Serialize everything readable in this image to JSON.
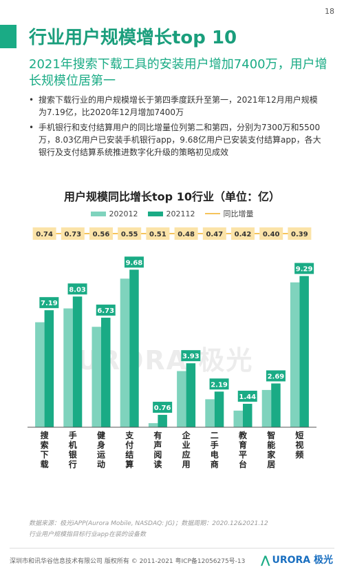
{
  "page": {
    "number": "18",
    "title": "行业用户规模增长top 10",
    "subtitle": "2021年搜索下载工具的安装用户增加7400万，用户增长规模位居第一",
    "bullet_marker": "•",
    "bullets": [
      "搜索下载行业的用户规模增长于第四季度跃升至第一，2021年12月用户规模为7.19亿，比2020年12月增加7400万",
      "手机银行和支付结算用户的同比增量位列第二和第四，分别为7300万和5500万，8.03亿用户已安装手机银行app，9.68亿用户已安装支付结算app，各大银行及支付结算系统推进数字化升级的策略初见成效"
    ],
    "watermark": "URORA 极光",
    "notes": [
      "数据来源：极光iAPP(Aurora Mobile, NASDAQ: JG)；数据周期：2020.12&2021.12",
      "行业用户规模指目标行业app在装的设备数"
    ],
    "footer": {
      "copyright": "深圳市和讯华谷信息技术有限公司 版权所有 © 2011-2021 粤ICP备12056275号-13",
      "logo_text": "URORA 极光",
      "logo_mark": "⋀"
    }
  },
  "colors": {
    "accent": "#1aab85",
    "series_2020": "#7fd3bd",
    "series_2021": "#1aab85",
    "growth_line": "#f5c35a",
    "growth_box": "#fbe3a8"
  },
  "chart_data": {
    "type": "bar",
    "title": "用户规模同比增长top 10行业（单位：亿）",
    "categories": [
      "搜索下载",
      "手机银行",
      "健身运动",
      "支付结算",
      "有声阅读",
      "企业应用",
      "二手电商",
      "教育平台",
      "智能家居",
      "短视频"
    ],
    "series": [
      {
        "name": "202012",
        "values": [
          6.45,
          7.3,
          6.17,
          9.13,
          0.25,
          3.45,
          1.72,
          1.02,
          2.29,
          8.9
        ]
      },
      {
        "name": "202112",
        "values": [
          7.19,
          8.03,
          6.73,
          9.68,
          0.76,
          3.93,
          2.19,
          1.44,
          2.69,
          9.29
        ]
      }
    ],
    "line_series": {
      "name": "同比增量",
      "values": [
        0.74,
        0.73,
        0.56,
        0.55,
        0.51,
        0.48,
        0.47,
        0.42,
        0.4,
        0.39
      ]
    },
    "data_labels_shown": [
      "202112",
      "同比增量"
    ],
    "ylim": [
      0,
      10.5
    ],
    "grid": false,
    "legend": "top-center"
  }
}
